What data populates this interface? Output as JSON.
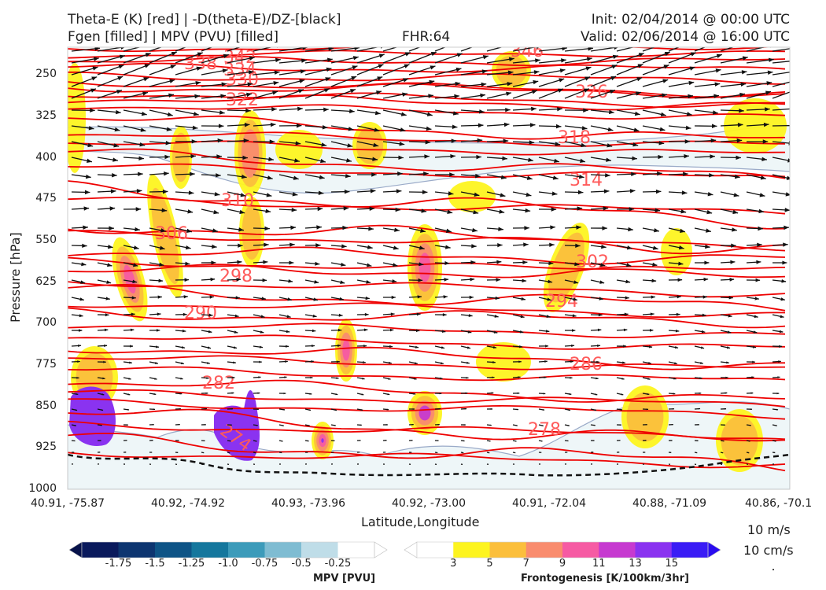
{
  "header": {
    "title_line1": "Theta-E (K) [red] | -D(theta-E)/DZ-[black]",
    "title_line2": "Fgen [filled] | MPV (PVU) [filled]",
    "fhr": "FHR:64",
    "init": "Init: 02/04/2014 @ 00:00 UTC",
    "valid": "Valid: 02/06/2014 @ 16:00 UTC"
  },
  "axes": {
    "ylabel": "Pressure [hPa]",
    "xlabel": "Latitude,Longitude"
  },
  "chart_data": {
    "type": "heatmap",
    "title": "Theta-E (K) [red] | -D(theta-E)/DZ-[black] / Fgen [filled] | MPV (PVU) [filled]",
    "xlabel": "Latitude,Longitude",
    "ylabel": "Pressure [hPa]",
    "x_ticks": [
      "40.91, -75.87",
      "40.92, -74.92",
      "40.93, -73.96",
      "40.92, -73.00",
      "40.91, -72.04",
      "40.88, -71.09",
      "40.86, -70.1"
    ],
    "y_ticks": [
      250,
      325,
      400,
      475,
      550,
      625,
      700,
      775,
      850,
      925,
      1000
    ],
    "ylim": [
      1000,
      200
    ],
    "y_scale": "linear",
    "theta_e_contours": [
      {
        "label": "346",
        "level": 346
      },
      {
        "label": "342",
        "level": 342
      },
      {
        "label": "338",
        "level": 338
      },
      {
        "label": "334",
        "level": 334
      },
      {
        "label": "330",
        "level": 330
      },
      {
        "label": "326",
        "level": 326
      },
      {
        "label": "322",
        "level": 322
      },
      {
        "label": "318",
        "level": 318
      },
      {
        "label": "314",
        "level": 314
      },
      {
        "label": "310",
        "level": 310
      },
      {
        "label": "306",
        "level": 306
      },
      {
        "label": "302",
        "level": 302
      },
      {
        "label": "298",
        "level": 298
      },
      {
        "label": "294",
        "level": 294
      },
      {
        "label": "290",
        "level": 290
      },
      {
        "label": "286",
        "level": 286
      },
      {
        "label": "282",
        "level": 282
      },
      {
        "label": "278",
        "level": 278
      },
      {
        "label": "274",
        "level": 274
      }
    ],
    "mpv_colorbar": {
      "title": "MPV [PVU]",
      "ticks": [
        "-1.75",
        "-1.5",
        "-1.25",
        "-1.0",
        "-0.75",
        "-0.5",
        "-0.25"
      ],
      "colors": [
        "#0a1a5c",
        "#0d3570",
        "#0e5486",
        "#15779d",
        "#3d9bba",
        "#7fbcd2",
        "#bfdde8",
        "#ffffff"
      ]
    },
    "fgen_colorbar": {
      "title": "Frontogenesis [K/100km/3hr]",
      "ticks": [
        "3",
        "5",
        "7",
        "9",
        "11",
        "13",
        "15"
      ],
      "colors": [
        "#ffffff",
        "#fdf420",
        "#fbbf3c",
        "#f98c6e",
        "#f65ba3",
        "#c63ad0",
        "#8a33f0",
        "#3a1cf5"
      ]
    },
    "wind_reference": [
      "10 m/s",
      "10 cm/s"
    ],
    "grid": false
  },
  "colors": {
    "theta_e": "#ee0000",
    "theta_e_label": "#ff5a5a",
    "mpv_line": "#9aaac8",
    "mpv_fill": "#eef6f8",
    "fgen_fill": "#f5f7a0"
  }
}
